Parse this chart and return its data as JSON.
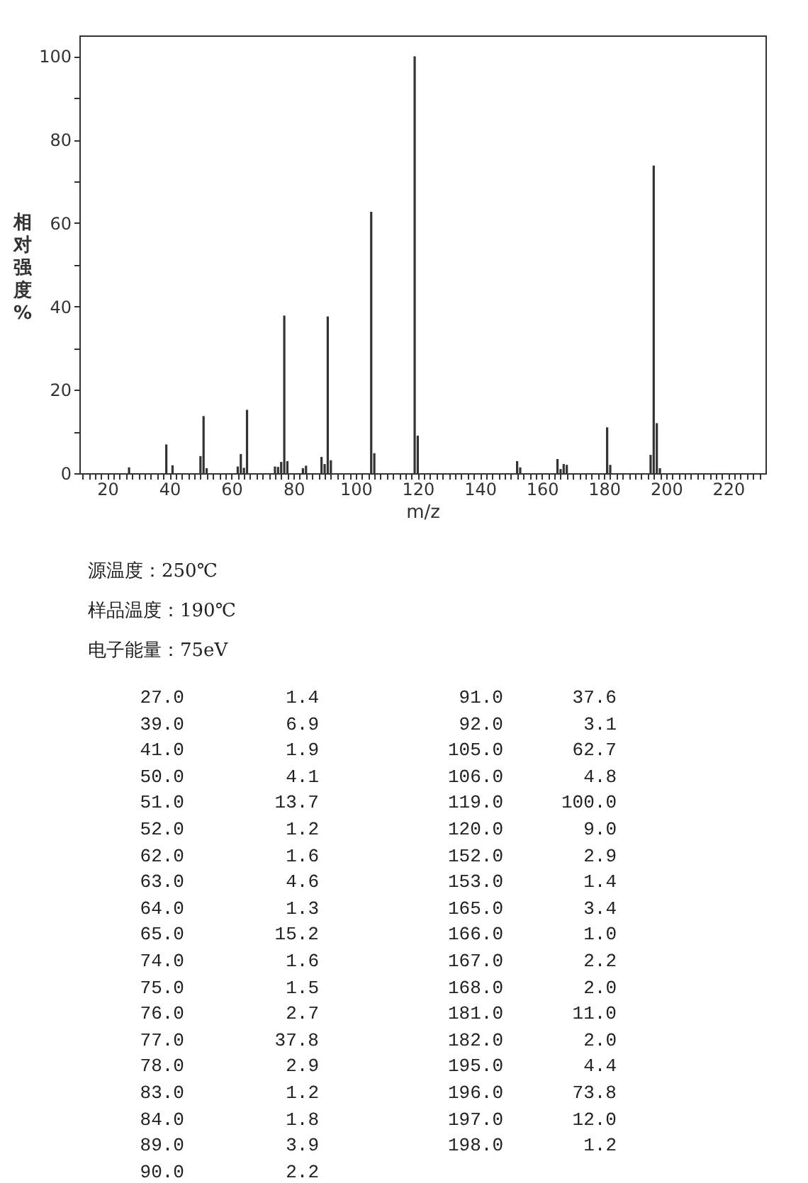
{
  "chart_data": [
    {
      "type": "bar",
      "xlabel": "m/z",
      "ylabel": "相对强度%",
      "color": "#333333",
      "x": [
        27.0,
        39.0,
        41.0,
        50.0,
        51.0,
        52.0,
        62.0,
        63.0,
        64.0,
        65.0,
        74.0,
        75.0,
        76.0,
        77.0,
        78.0,
        83.0,
        84.0,
        89.0,
        90.0,
        91.0,
        92.0,
        105.0,
        106.0,
        119.0,
        120.0,
        152.0,
        153.0,
        165.0,
        166.0,
        167.0,
        168.0,
        181.0,
        182.0,
        195.0,
        196.0,
        197.0,
        198.0
      ],
      "values": [
        1.4,
        6.9,
        1.9,
        4.1,
        13.7,
        1.2,
        1.6,
        4.6,
        1.3,
        15.2,
        1.6,
        1.5,
        2.7,
        37.8,
        2.9,
        1.2,
        1.8,
        3.9,
        2.2,
        37.6,
        3.1,
        62.7,
        4.8,
        100.0,
        9.0,
        2.9,
        1.4,
        3.4,
        1.0,
        2.2,
        2.0,
        11.0,
        2.0,
        4.4,
        73.8,
        12.0,
        1.2
      ],
      "xlim": [
        11,
        232
      ],
      "ylim": [
        0,
        105
      ],
      "xticks": [
        {
          "value": 12,
          "label": null
        },
        {
          "value": 14,
          "label": null
        },
        {
          "value": 16,
          "label": null
        },
        {
          "value": 18,
          "label": null
        },
        20,
        {
          "value": 22,
          "label": null
        },
        {
          "value": 24,
          "label": null
        },
        {
          "value": 26,
          "label": null
        },
        {
          "value": 28,
          "label": null
        },
        {
          "value": 30,
          "label": null
        },
        {
          "value": 32,
          "label": null
        },
        {
          "value": 34,
          "label": null
        },
        {
          "value": 36,
          "label": null
        },
        {
          "value": 38,
          "label": null
        },
        40,
        {
          "value": 42,
          "label": null
        },
        {
          "value": 44,
          "label": null
        },
        {
          "value": 46,
          "label": null
        },
        {
          "value": 48,
          "label": null
        },
        {
          "value": 50,
          "label": null
        },
        {
          "value": 52,
          "label": null
        },
        {
          "value": 54,
          "label": null
        },
        {
          "value": 56,
          "label": null
        },
        {
          "value": 58,
          "label": null
        },
        60,
        {
          "value": 62,
          "label": null
        },
        {
          "value": 64,
          "label": null
        },
        {
          "value": 66,
          "label": null
        },
        {
          "value": 68,
          "label": null
        },
        {
          "value": 70,
          "label": null
        },
        {
          "value": 72,
          "label": null
        },
        {
          "value": 74,
          "label": null
        },
        {
          "value": 76,
          "label": null
        },
        {
          "value": 78,
          "label": null
        },
        80,
        {
          "value": 82,
          "label": null
        },
        {
          "value": 84,
          "label": null
        },
        {
          "value": 86,
          "label": null
        },
        {
          "value": 88,
          "label": null
        },
        {
          "value": 90,
          "label": null
        },
        {
          "value": 92,
          "label": null
        },
        {
          "value": 94,
          "label": null
        },
        {
          "value": 96,
          "label": null
        },
        {
          "value": 98,
          "label": null
        },
        100,
        {
          "value": 102,
          "label": null
        },
        {
          "value": 104,
          "label": null
        },
        {
          "value": 106,
          "label": null
        },
        {
          "value": 108,
          "label": null
        },
        {
          "value": 110,
          "label": null
        },
        {
          "value": 112,
          "label": null
        },
        {
          "value": 114,
          "label": null
        },
        {
          "value": 116,
          "label": null
        },
        {
          "value": 118,
          "label": null
        },
        120,
        {
          "value": 122,
          "label": null
        },
        {
          "value": 124,
          "label": null
        },
        {
          "value": 126,
          "label": null
        },
        {
          "value": 128,
          "label": null
        },
        {
          "value": 130,
          "label": null
        },
        {
          "value": 132,
          "label": null
        },
        {
          "value": 134,
          "label": null
        },
        {
          "value": 136,
          "label": null
        },
        {
          "value": 138,
          "label": null
        },
        140,
        {
          "value": 142,
          "label": null
        },
        {
          "value": 144,
          "label": null
        },
        {
          "value": 146,
          "label": null
        },
        {
          "value": 148,
          "label": null
        },
        {
          "value": 150,
          "label": null
        },
        {
          "value": 152,
          "label": null
        },
        {
          "value": 154,
          "label": null
        },
        {
          "value": 156,
          "label": null
        },
        {
          "value": 158,
          "label": null
        },
        160,
        {
          "value": 162,
          "label": null
        },
        {
          "value": 164,
          "label": null
        },
        {
          "value": 166,
          "label": null
        },
        {
          "value": 168,
          "label": null
        },
        {
          "value": 170,
          "label": null
        },
        {
          "value": 172,
          "label": null
        },
        {
          "value": 174,
          "label": null
        },
        {
          "value": 176,
          "label": null
        },
        {
          "value": 178,
          "label": null
        },
        180,
        {
          "value": 182,
          "label": null
        },
        {
          "value": 184,
          "label": null
        },
        {
          "value": 186,
          "label": null
        },
        {
          "value": 188,
          "label": null
        },
        {
          "value": 190,
          "label": null
        },
        {
          "value": 192,
          "label": null
        },
        {
          "value": 194,
          "label": null
        },
        {
          "value": 196,
          "label": null
        },
        {
          "value": 198,
          "label": null
        },
        200,
        {
          "value": 202,
          "label": null
        },
        {
          "value": 204,
          "label": null
        },
        {
          "value": 206,
          "label": null
        },
        {
          "value": 208,
          "label": null
        },
        {
          "value": 210,
          "label": null
        },
        {
          "value": 212,
          "label": null
        },
        {
          "value": 214,
          "label": null
        },
        {
          "value": 216,
          "label": null
        },
        {
          "value": 218,
          "label": null
        },
        220,
        {
          "value": 222,
          "label": null
        },
        {
          "value": 224,
          "label": null
        },
        {
          "value": 226,
          "label": null
        },
        {
          "value": 228,
          "label": null
        },
        {
          "value": 230,
          "label": null
        }
      ],
      "yticks": [
        0,
        {
          "value": 10,
          "label": null
        },
        20,
        {
          "value": 30,
          "label": null
        },
        40,
        {
          "value": 50,
          "label": null
        },
        60,
        {
          "value": 70,
          "label": null
        },
        80,
        {
          "value": 90,
          "label": null
        },
        100
      ],
      "annotations": [
        "源温度：250℃",
        "样品温度：190℃",
        "电子能量：75eV"
      ]
    },
    {
      "type": "other",
      "annotations": [
        "27.0",
        "1.4",
        "91.0",
        "37.6",
        "39.0",
        "6.9",
        "92.0",
        "3.1",
        "41.0",
        "1.9",
        "105.0",
        "62.7",
        "50.0",
        "4.1",
        "106.0",
        "4.8",
        "51.0",
        "13.7",
        "119.0",
        "100.0",
        "52.0",
        "1.2",
        "120.0",
        "9.0",
        "62.0",
        "1.6",
        "152.0",
        "2.9",
        "63.0",
        "4.6",
        "153.0",
        "1.4",
        "64.0",
        "1.3",
        "165.0",
        "3.4",
        "65.0",
        "15.2",
        "166.0",
        "1.0",
        "74.0",
        "1.6",
        "167.0",
        "2.2",
        "75.0",
        "1.5",
        "168.0",
        "2.0",
        "76.0",
        "2.7",
        "181.0",
        "11.0",
        "77.0",
        "37.8",
        "182.0",
        "2.0",
        "78.0",
        "2.9",
        "195.0",
        "4.4",
        "83.0",
        "1.2",
        "196.0",
        "73.8",
        "84.0",
        "1.8",
        "197.0",
        "12.0",
        "89.0",
        "3.9",
        "198.0",
        "1.2",
        "90.0",
        "2.2"
      ]
    }
  ]
}
